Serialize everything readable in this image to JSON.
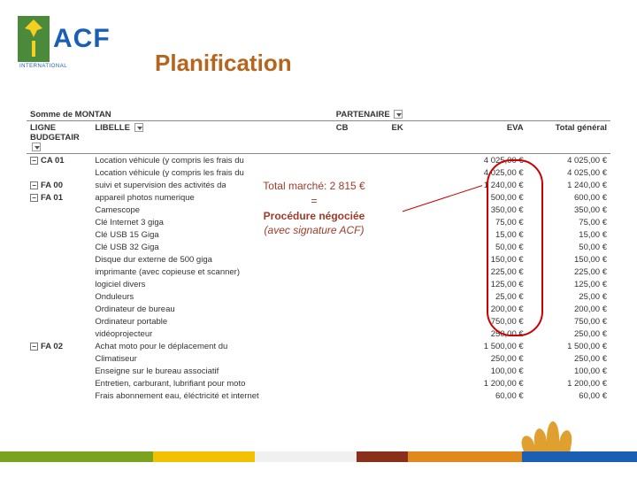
{
  "logo": {
    "brand": "ACF",
    "subtitle": "INTERNATIONAL"
  },
  "title": "Planification",
  "callout": {
    "line1": "Total marché: 2 815 €",
    "line2": "=",
    "line3": "Procédure négociée",
    "line4": "(avec signature ACF)"
  },
  "table": {
    "sumLabel": "Somme de MONTAN",
    "partnerLabel": "PARTENAIRE",
    "headers": {
      "budget": "LIGNE BUDGETAIR",
      "libelle": "LIBELLE",
      "cb": "CB",
      "ek": "EK",
      "eva": "EVA",
      "total": "Total général"
    },
    "rows": [
      {
        "group": "CA 01",
        "libelle": "Location véhicule (y compris les frais du",
        "eva": "4 025,00 €",
        "total": "4 025,00 €"
      },
      {
        "group": "",
        "libelle": "Location véhicule (y compris les frais du",
        "eva": "4 025,00 €",
        "total": "4 025,00 €"
      },
      {
        "group": "FA 00",
        "libelle": "suivi et supervision des activités dans les",
        "eva": "1 240,00 €",
        "total": "1 240,00 €"
      },
      {
        "group": "FA 01",
        "libelle": "appareil photos numerique",
        "eva": "500,00 €",
        "total": "600,00 €"
      },
      {
        "group": "",
        "libelle": "Camescope",
        "eva": "350,00 €",
        "total": "350,00 €"
      },
      {
        "group": "",
        "libelle": "Clé Internet 3 giga",
        "eva": "75,00 €",
        "total": "75,00 €"
      },
      {
        "group": "",
        "libelle": "Clé USB 15 Giga",
        "eva": "15,00 €",
        "total": "15,00 €"
      },
      {
        "group": "",
        "libelle": "Clé USB 32 Giga",
        "eva": "50,00 €",
        "total": "50,00 €"
      },
      {
        "group": "",
        "libelle": "Disque dur externe de 500 giga",
        "eva": "150,00 €",
        "total": "150,00 €"
      },
      {
        "group": "",
        "libelle": "imprimante (avec copieuse et scanner)",
        "eva": "225,00 €",
        "total": "225,00 €"
      },
      {
        "group": "",
        "libelle": "logiciel divers",
        "eva": "125,00 €",
        "total": "125,00 €"
      },
      {
        "group": "",
        "libelle": "Onduleurs",
        "eva": "25,00 €",
        "total": "25,00 €"
      },
      {
        "group": "",
        "libelle": "Ordinateur de bureau",
        "eva": "200,00 €",
        "total": "200,00 €"
      },
      {
        "group": "",
        "libelle": "Ordinateur portable",
        "eva": "750,00 €",
        "total": "750,00 €"
      },
      {
        "group": "",
        "libelle": "vidéoprojecteur",
        "eva": "250,00 €",
        "total": "250,00 €"
      },
      {
        "group": "FA 02",
        "libelle": "Achat moto pour le déplacement du",
        "eva": "1 500,00 €",
        "total": "1 500,00 €"
      },
      {
        "group": "",
        "libelle": "Climatiseur",
        "eva": "250,00 €",
        "total": "250,00 €"
      },
      {
        "group": "",
        "libelle": "Enseigne sur le bureau associatif",
        "eva": "100,00 €",
        "total": "100,00 €"
      },
      {
        "group": "",
        "libelle": "Entretien, carburant, lubrifiant pour moto",
        "eva": "1 200,00 €",
        "total": "1 200,00 €"
      },
      {
        "group": "",
        "libelle": "Frais abonnement eau, éléctricité et internet",
        "eva": "60,00 €",
        "total": "60,00 €"
      }
    ]
  },
  "footer": {
    "swatches": [
      "#7aa31f",
      "#f2c200",
      "#f0f0f0",
      "#8a2f1a",
      "#e08a1e",
      "#1a5fb4"
    ],
    "swatch_widths": [
      "24%",
      "16%",
      "16%",
      "8%",
      "18%",
      "18%"
    ],
    "plant_color": "#e0a030"
  },
  "page": "3",
  "colors": {
    "title": "#b5651d",
    "callout_text": "#a03a2a",
    "highlight_border": "#c00000",
    "logo_text": "#1a5fb4",
    "logo_box": "#4a8a3a",
    "logo_leaf": "#f5d020"
  }
}
